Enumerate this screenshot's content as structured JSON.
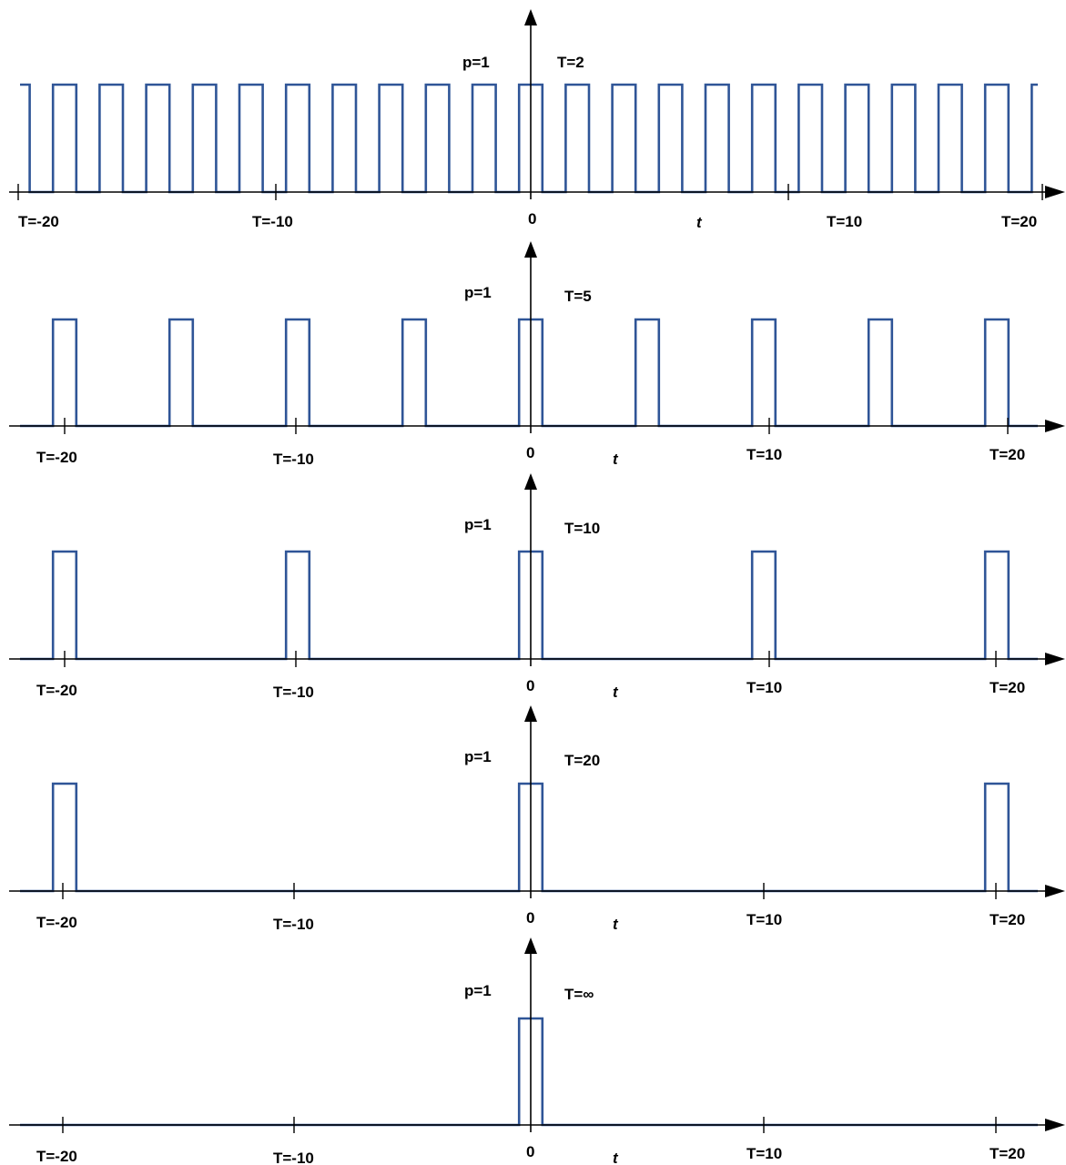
{
  "diagram": {
    "style": {
      "wave_color": "#2f5597",
      "axis_color": "#000000",
      "text_color": "#000000"
    },
    "axis_label": "t",
    "origin_label": "0",
    "amplitude_label": "p=1",
    "pulse_width": 1,
    "panels": [
      {
        "period_label": "T=2",
        "period": 2,
        "tick_labels": [
          "T=-20",
          "T=-10",
          "T=10",
          "T=20"
        ]
      },
      {
        "period_label": "T=5",
        "period": 5,
        "tick_labels": [
          "T=-20",
          "T=-10",
          "T=10",
          "T=20"
        ]
      },
      {
        "period_label": "T=10",
        "period": 10,
        "tick_labels": [
          "T=-20",
          "T=-10",
          "T=10",
          "T=20"
        ]
      },
      {
        "period_label": "T=20",
        "period": 20,
        "tick_labels": [
          "T=-20",
          "T=-10",
          "T=10",
          "T=20"
        ]
      },
      {
        "period_label": "T=∞",
        "period": null,
        "tick_labels": [
          "T=-20",
          "T=-10",
          "T=10",
          "T=20"
        ]
      }
    ]
  }
}
